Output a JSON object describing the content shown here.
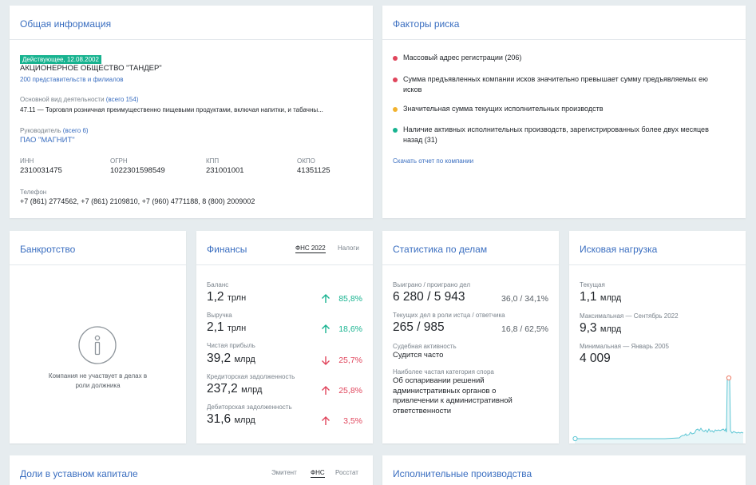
{
  "general": {
    "title": "Общая информация",
    "status_badge": "Действующее, 12.08.2002",
    "company_name": "АКЦИОНЕРНОЕ ОБЩЕСТВО \"ТАНДЕР\"",
    "branches_link": "200 представительств и филиалов",
    "activity_label": "Основной вид деятельности",
    "activity_count": "(всего 154)",
    "activity_value": "47.11 — Торговля розничная преимущественно пищевыми продуктами, включая напитки, и табачны...",
    "head_label": "Руководитель",
    "head_count": "(всего 6)",
    "head_value": "ПАО \"МАГНИТ\"",
    "inn_label": "ИНН",
    "inn_value": "2310031475",
    "ogrn_label": "ОГРН",
    "ogrn_value": "1022301598549",
    "kpp_label": "КПП",
    "kpp_value": "231001001",
    "okpo_label": "ОКПО",
    "okpo_value": "41351125",
    "phone_label": "Телефон",
    "phone_value": "+7 (861) 2774562, +7 (861) 2109810, +7 (960) 4771188, 8 (800) 2009002"
  },
  "risks": {
    "title": "Факторы риска",
    "items": [
      {
        "text": "Массовый адрес регистрации (206)",
        "color": "#e0455c"
      },
      {
        "text": "Сумма предъявленных компании исков значительно превышает сумму предъявляемых ею исков",
        "color": "#e0455c"
      },
      {
        "text": "Значительная сумма текущих исполнительных производств",
        "color": "#f2b22e"
      },
      {
        "text": "Наличие активных исполнительных производств, зарегистрированных более двух месяцев назад (31)",
        "color": "#18b390"
      }
    ],
    "download_link": "Скачать отчет по компании"
  },
  "bankruptcy": {
    "title": "Банкротство",
    "icon": "info-icon",
    "message": "Компания не участвует в делах в роли должника"
  },
  "finance": {
    "title": "Финансы",
    "tab_fns": "ФНС 2022",
    "tab_taxes": "Налоги",
    "rows": [
      {
        "label": "Баланс",
        "value": "1,2",
        "unit": "трлн",
        "pct": "85,8%",
        "dir": "up"
      },
      {
        "label": "Выручка",
        "value": "2,1",
        "unit": "трлн",
        "pct": "18,6%",
        "dir": "up"
      },
      {
        "label": "Чистая прибыль",
        "value": "39,2",
        "unit": "млрд",
        "pct": "25,7%",
        "dir": "down"
      },
      {
        "label": "Кредиторская задолженность",
        "value": "237,2",
        "unit": "млрд",
        "pct": "25,8%",
        "dir": "up-bad"
      },
      {
        "label": "Дебиторская задолженность",
        "value": "31,6",
        "unit": "млрд",
        "pct": "3,5%",
        "dir": "up-bad"
      }
    ],
    "colors": {
      "up": "#18b390",
      "down": "#e0455c"
    }
  },
  "cases": {
    "title": "Статистика по делам",
    "won_label": "Выиграно / проиграно дел",
    "won_value": "6 280 / 5 943",
    "won_pct": "36,0 / 34,1%",
    "current_label": "Текущих дел в роли истца / ответчика",
    "current_value": "265 / 985",
    "current_pct": "16,8 / 62,5%",
    "activity_label": "Судебная активность",
    "activity_value": "Судится часто",
    "category_label": "Наиболее частая категория спора",
    "category_value": "Об оспаривании решений административных органов о привлечении к административной ответственности"
  },
  "claims": {
    "title": "Исковая нагрузка",
    "current_label": "Текущая",
    "current_value": "1,1",
    "current_unit": "млрд",
    "max_label": "Максимальная — Сентябрь 2022",
    "max_value": "9,3",
    "max_unit": "млрд",
    "min_label": "Минимальная — Январь 2005",
    "min_value": "4 009"
  },
  "shares": {
    "title": "Доли в уставном капитале",
    "tab_emitent": "Эмитент",
    "tab_fns": "ФНС",
    "tab_rosstat": "Росстат"
  },
  "enforcement": {
    "title": "Исполнительные производства"
  }
}
